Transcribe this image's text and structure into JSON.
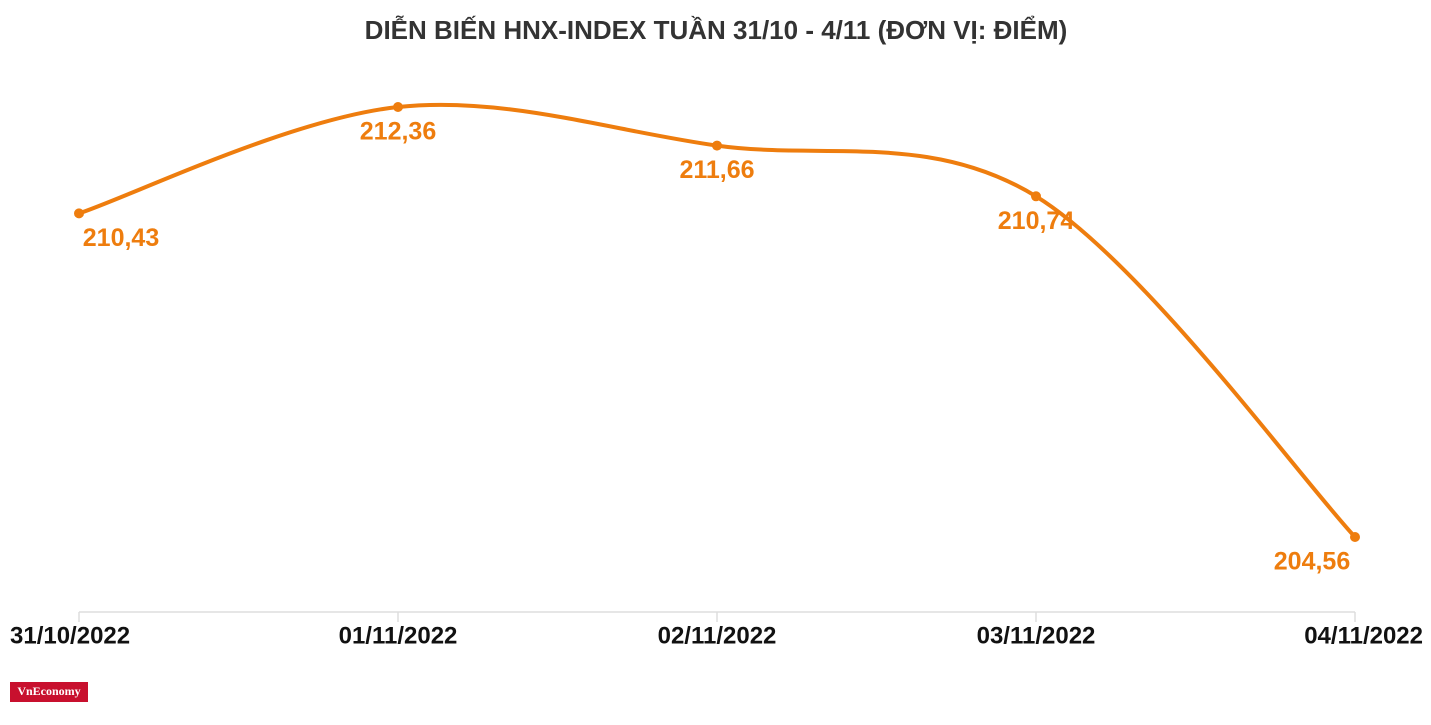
{
  "chart_data": {
    "type": "line",
    "title": "DIỄN BIẾN HNX-INDEX TUẦN 31/10 - 4/11 (ĐƠN VỊ: ĐIỂM)",
    "categories": [
      "31/10/2022",
      "01/11/2022",
      "02/11/2022",
      "03/11/2022",
      "04/11/2022"
    ],
    "values": [
      210.43,
      212.36,
      211.66,
      210.74,
      204.56
    ],
    "value_labels": [
      "210,43",
      "212,36",
      "211,66",
      "210,74",
      "204,56"
    ],
    "color": "#ee7d0e",
    "logo": "VnEconomy"
  }
}
